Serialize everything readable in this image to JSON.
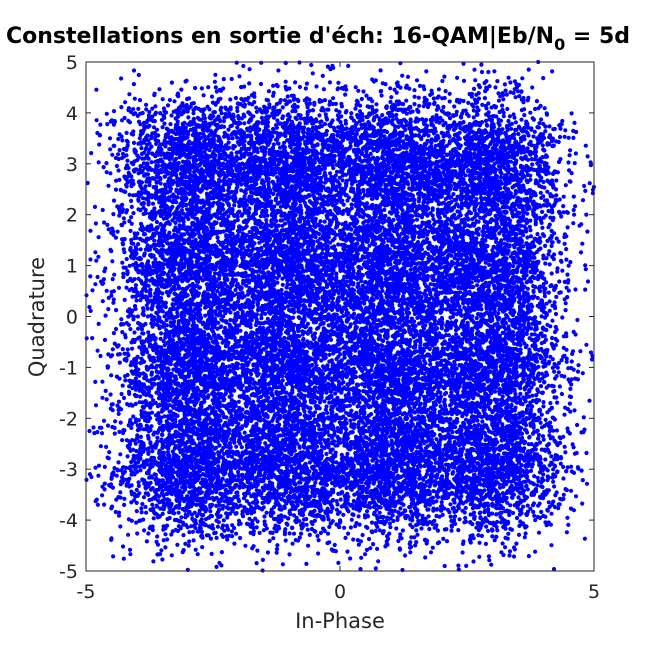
{
  "chart_data": {
    "type": "scatter",
    "title": {
      "prefix": "Constellations en sortie d'éch: 16-QAM|Eb/N",
      "subscript": "0",
      "suffix": " = 5d"
    },
    "xlabel": "In-Phase",
    "ylabel": "Quadrature",
    "xlim": [
      -5,
      5
    ],
    "ylim": [
      -5,
      5
    ],
    "xticks": [
      -5,
      0,
      5
    ],
    "yticks": [
      -5,
      -4,
      -3,
      -2,
      -1,
      0,
      1,
      2,
      3,
      4,
      5
    ],
    "xtick_labels": [
      "-5",
      "0",
      "5"
    ],
    "ytick_labels": [
      "-5",
      "-4",
      "-3",
      "-2",
      "-1",
      "0",
      "1",
      "2",
      "3",
      "4",
      "5"
    ],
    "grid": false,
    "marker_color": "#0000ff",
    "constellation_points": {
      "i_levels": [
        -3,
        -1,
        1,
        3
      ],
      "q_levels": [
        -3,
        -1,
        1,
        3
      ]
    },
    "noise_std": 0.72,
    "points_per_symbol": 1500
  }
}
